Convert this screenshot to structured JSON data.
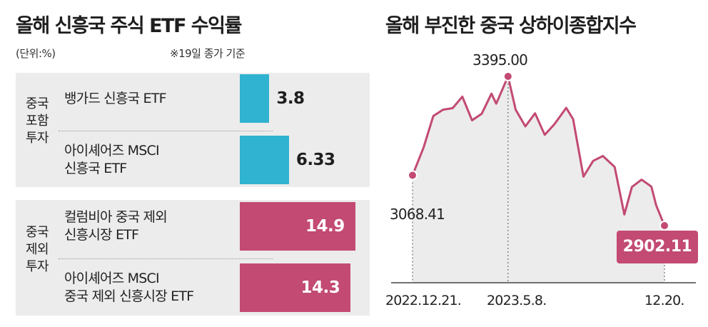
{
  "left_panel": {
    "title": "올해 신흥국 주식 ETF 수익률",
    "unit": "(단위:%)",
    "basis": "※19일 종가 기준",
    "groups": [
      {
        "label": "중국\n포함\n투자",
        "color": "#2fb3d0"
      },
      {
        "label": "중국\n제외\n투자",
        "color": "#c24a73"
      }
    ]
  },
  "right_panel": {
    "title": "올해 부진한 중국 상하이종합지수",
    "line_color": "#c24a73",
    "start_value_label": "3068.41",
    "peak_value_label": "3395.00",
    "end_value_label": "2902.11",
    "date_labels": [
      "2022.12.21.",
      "2023.5.8.",
      "12.20."
    ]
  },
  "chart_data": [
    {
      "type": "bar",
      "title": "올해 신흥국 주식 ETF 수익률",
      "unit": "%",
      "categories": [
        "뱅가드 신흥국 ETF",
        "아이셰어즈 MSCI 신흥국 ETF",
        "컬럼비아 중국 제외 신흥시장 ETF",
        "아이셰어즈 MSCI 중국 제외 신흥시장 ETF"
      ],
      "category_lines": [
        [
          "뱅가드 신흥국 ETF"
        ],
        [
          "아이셰어즈 MSCI",
          "신흥국 ETF"
        ],
        [
          "컬럼비아 중국 제외",
          "신흥시장 ETF"
        ],
        [
          "아이셰어즈 MSCI",
          "중국 제외 신흥시장 ETF"
        ]
      ],
      "values": [
        3.8,
        6.33,
        14.9,
        14.3
      ],
      "value_labels": [
        "3.8",
        "6.33",
        "14.9",
        "14.3"
      ],
      "groups": [
        0,
        0,
        1,
        1
      ],
      "xlim": [
        0,
        15
      ]
    },
    {
      "type": "line",
      "title": "올해 부진한 중국 상하이종합지수",
      "x": [
        "2022-12-21",
        "2023-01-06",
        "2023-01-20",
        "2023-02-03",
        "2023-02-17",
        "2023-03-03",
        "2023-03-17",
        "2023-03-31",
        "2023-04-14",
        "2023-04-21",
        "2023-05-08",
        "2023-05-19",
        "2023-06-02",
        "2023-06-16",
        "2023-06-30",
        "2023-07-14",
        "2023-07-31",
        "2023-08-10",
        "2023-08-25",
        "2023-09-08",
        "2023-09-22",
        "2023-10-09",
        "2023-10-23",
        "2023-11-03",
        "2023-11-17",
        "2023-12-01",
        "2023-12-08",
        "2023-12-20"
      ],
      "y": [
        3068.41,
        3160,
        3264,
        3285,
        3290,
        3328,
        3250,
        3272,
        3338,
        3305,
        3395.0,
        3285,
        3230,
        3273,
        3202,
        3237,
        3291,
        3254,
        3064,
        3116,
        3132,
        3096,
        2939,
        3030,
        3054,
        3031,
        2969,
        2902.11
      ],
      "highlights": [
        {
          "x": "2022-12-21",
          "y": 3068.41,
          "label": "3068.41"
        },
        {
          "x": "2023-05-08",
          "y": 3395.0,
          "label": "3395.00"
        },
        {
          "x": "2023-12-20",
          "y": 2902.11,
          "label": "2902.11"
        }
      ],
      "ylim": [
        2860,
        3440
      ]
    }
  ]
}
